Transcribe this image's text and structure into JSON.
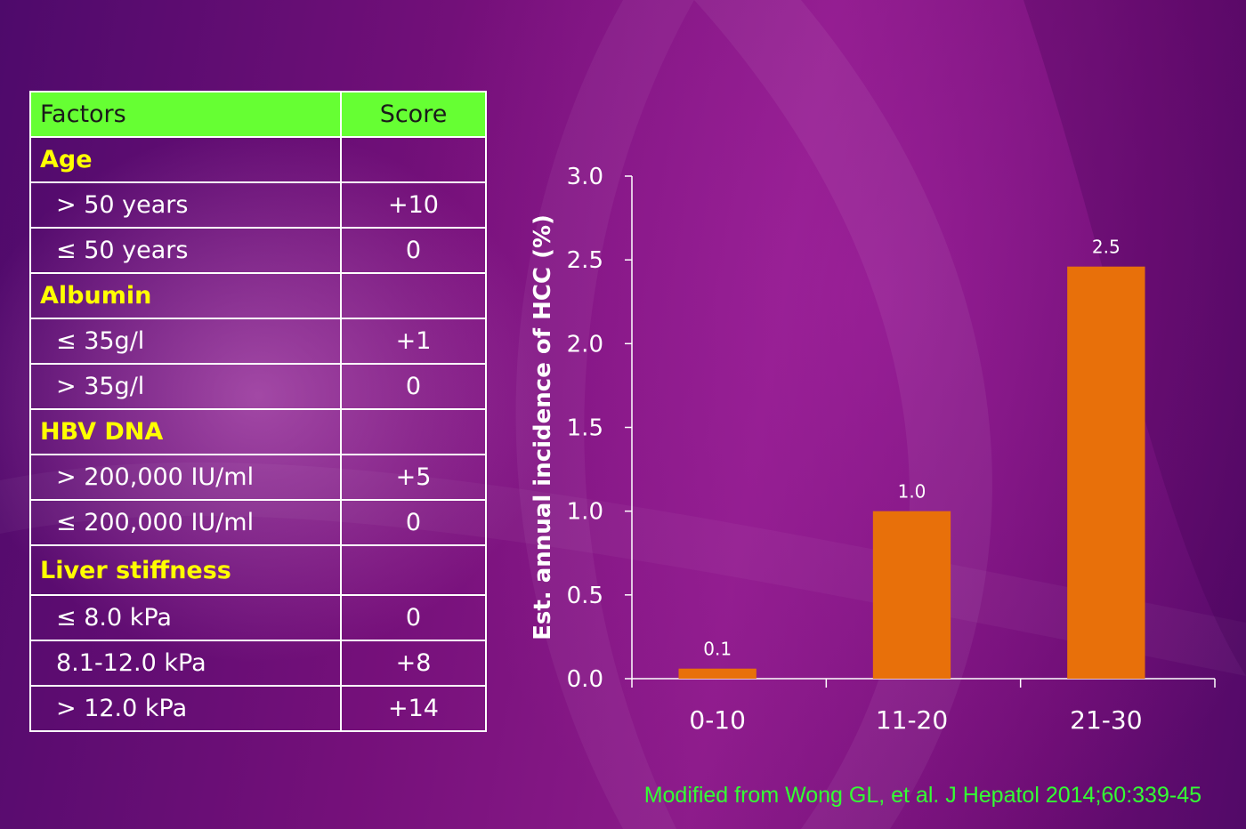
{
  "table": {
    "headers": [
      "Factors",
      "Score"
    ],
    "groups": [
      {
        "name": "Age",
        "rows": [
          {
            "label": "> 50 years",
            "score": "+10"
          },
          {
            "label": "≤ 50 years",
            "score": "0"
          }
        ]
      },
      {
        "name": "Albumin",
        "rows": [
          {
            "label": "≤ 35g/l",
            "score": "+1"
          },
          {
            "label": "> 35g/l",
            "score": "0"
          }
        ]
      },
      {
        "name": "HBV DNA",
        "rows": [
          {
            "label": "> 200,000 IU/ml",
            "score": "+5"
          },
          {
            "label": "≤ 200,000 IU/ml",
            "score": "0"
          }
        ]
      },
      {
        "name": "Liver stiffness",
        "rows": [
          {
            "label": "≤ 8.0 kPa",
            "score": "0"
          },
          {
            "label": "8.1-12.0 kPa",
            "score": "+8"
          },
          {
            "label": "> 12.0 kPa",
            "score": "+14"
          }
        ]
      }
    ]
  },
  "chart_data": {
    "type": "bar",
    "categories": [
      "0-10",
      "11-20",
      "21-30"
    ],
    "values": [
      0.06,
      1.0,
      2.46
    ],
    "data_labels": [
      "0.1",
      "1.0",
      "2.5"
    ],
    "ylabel": "Est. annual incidence of HCC (%)",
    "ylim": [
      0,
      3.0
    ],
    "yticks": [
      "0.0",
      "0.5",
      "1.0",
      "1.5",
      "2.0",
      "2.5",
      "3.0"
    ],
    "bar_color": "#e8700a",
    "grid": false
  },
  "citation": "Modified from Wong GL, et al. J Hepatol 2014;60:339-45"
}
